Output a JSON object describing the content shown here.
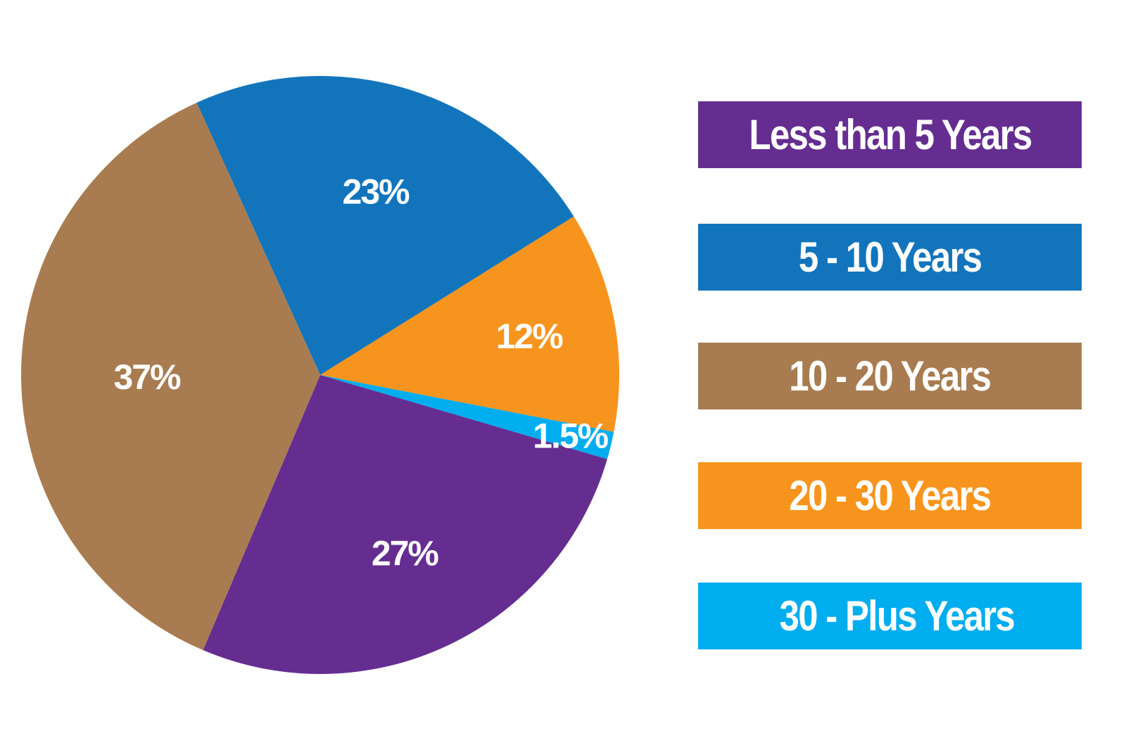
{
  "chart_data": {
    "type": "pie",
    "title": "",
    "slices": [
      {
        "name": "5 - 10 Years",
        "value": 23,
        "label": "23%",
        "color": "#1275bc"
      },
      {
        "name": "20 - 30 Years",
        "value": 12,
        "label": "12%",
        "color": "#f7941d"
      },
      {
        "name": "30 - Plus Years",
        "value": 1.5,
        "label": "1.5%",
        "color": "#00adee"
      },
      {
        "name": "Less than 5 Years",
        "value": 27,
        "label": "27%",
        "color": "#652d90"
      },
      {
        "name": "10 - 20 Years",
        "value": 37,
        "label": "37%",
        "color": "#a87c50"
      }
    ],
    "legend_placement": "right",
    "legend": [
      {
        "label": "Less than 5 Years",
        "color": "#652d90"
      },
      {
        "label": "5 - 10 Years",
        "color": "#1275bc"
      },
      {
        "label": "10 - 20 Years",
        "color": "#a87c50"
      },
      {
        "label": "20 - 30 Years",
        "color": "#f7941d"
      },
      {
        "label": "30 - Plus Years",
        "color": "#00adee"
      }
    ]
  }
}
